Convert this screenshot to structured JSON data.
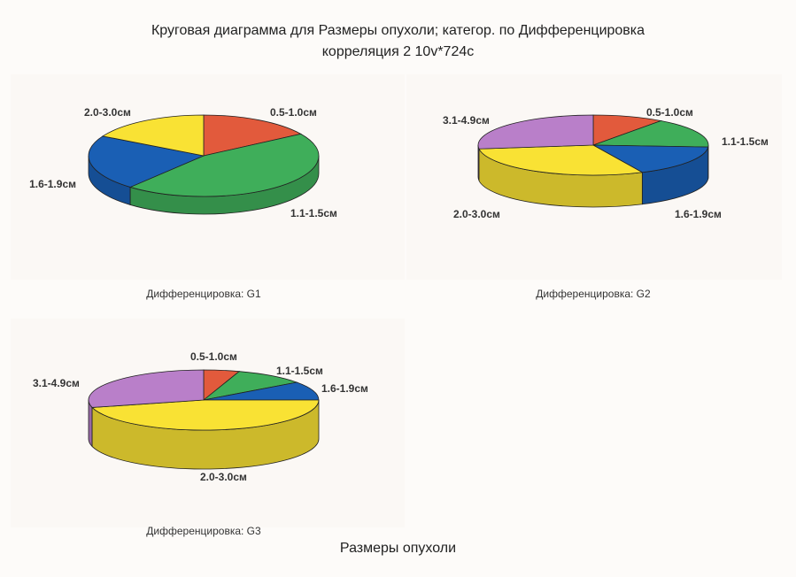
{
  "title_line1": "Круговая диаграмма для Размеры опухоли; категор. по Дифференцировка",
  "title_line2": "корреляция 2 10v*724c",
  "bottom_title": "Размеры опухоли",
  "colors": {
    "0.5-1.0см": "#e25a3c",
    "1.1-1.5см": "#3fae5a",
    "1.6-1.9см": "#1a5fb4",
    "2.0-3.0см": "#f9e234",
    "3.1-4.9см": "#b97fc9"
  },
  "chart_data": [
    {
      "type": "pie",
      "caption": "Дифференцировка: G1",
      "categories": [
        "0.5-1.0см",
        "1.1-1.5см",
        "1.6-1.9см",
        "2.0-3.0см"
      ],
      "values": [
        16,
        45,
        22,
        17
      ]
    },
    {
      "type": "pie",
      "caption": "Дифференцировка: G2",
      "categories": [
        "0.5-1.0см",
        "1.1-1.5см",
        "1.6-1.9см",
        "2.0-3.0см",
        "3.1-4.9см"
      ],
      "values": [
        10,
        16,
        17,
        30,
        27
      ]
    },
    {
      "type": "pie",
      "caption": "Дифференцировка: G3",
      "categories": [
        "0.5-1.0см",
        "1.1-1.5см",
        "1.6-1.9см",
        "2.0-3.0см",
        "3.1-4.9см"
      ],
      "values": [
        5,
        10,
        10,
        46,
        29
      ]
    }
  ]
}
